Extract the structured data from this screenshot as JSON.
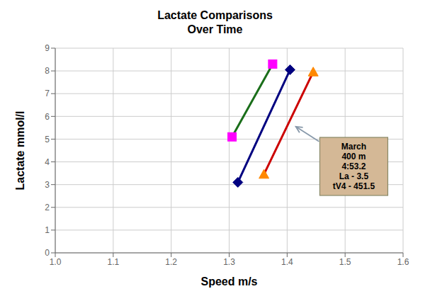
{
  "chart_data": {
    "type": "line",
    "title": "Lactate Comparisons",
    "subtitle": "Over Time",
    "x_label": "Speed m/s",
    "y_label": "Lactate mmol/l",
    "xlim": [
      1.0,
      1.6
    ],
    "ylim": [
      0,
      9
    ],
    "xticks": [
      {
        "value": 1.0,
        "label": "1.0"
      },
      1.1,
      1.2,
      1.3,
      1.4,
      1.5,
      1.6
    ],
    "yticks": [
      0,
      1,
      2,
      3,
      4,
      5,
      6,
      7,
      8,
      9
    ],
    "grid": true,
    "series": [
      {
        "x": [
          1.305,
          1.375
        ],
        "values": [
          5.1,
          8.3
        ],
        "color": "#1a6e1a",
        "marker": "square",
        "marker_color": "#ff00ff"
      },
      {
        "x": [
          1.315,
          1.405
        ],
        "values": [
          3.1,
          8.05
        ],
        "color": "#000080",
        "marker": "diamond",
        "marker_color": "#000080"
      },
      {
        "x": [
          1.36,
          1.445
        ],
        "values": [
          3.45,
          7.95
        ],
        "color": "#cc0000",
        "marker": "triangle",
        "marker_color": "#ff8800"
      }
    ],
    "annotations": [
      {
        "text": "March\n400 m\n4:53.2\nLa - 3.5\ntV4 - 451.5",
        "x": 1.515,
        "y": 3.8,
        "color": "#d4b896"
      },
      {
        "arrow_from": [
          1.455,
          4.9
        ],
        "arrow_to": [
          1.415,
          5.55
        ],
        "color": "#8899aa"
      }
    ]
  }
}
